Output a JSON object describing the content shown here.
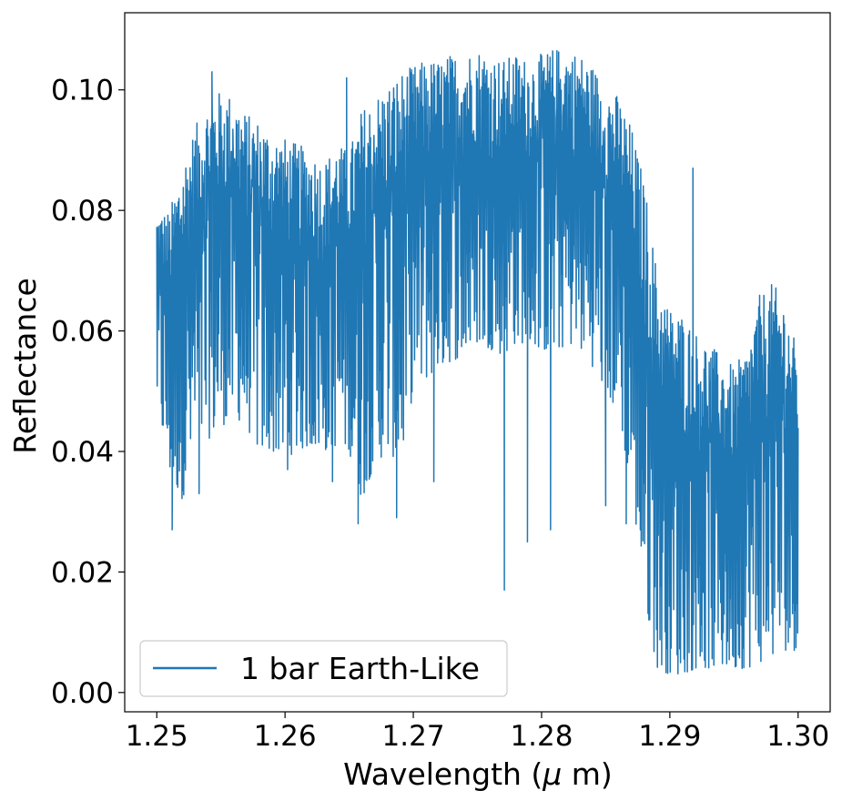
{
  "chart_data": {
    "type": "line",
    "title": "",
    "xlabel": "Wavelength ($\\mu$ m)",
    "xlabel_parts": {
      "before": "Wavelength (",
      "mu": "μ",
      "after": " m)"
    },
    "ylabel": "Reflectance",
    "xlim": [
      1.2475,
      1.3025
    ],
    "ylim": [
      -0.0032,
      0.1128
    ],
    "x_ticks": [
      1.25,
      1.26,
      1.27,
      1.28,
      1.29,
      1.3
    ],
    "x_tick_labels": [
      "1.25",
      "1.26",
      "1.27",
      "1.28",
      "1.29",
      "1.30"
    ],
    "y_ticks": [
      0.0,
      0.02,
      0.04,
      0.06,
      0.08,
      0.1
    ],
    "y_tick_labels": [
      "0.00",
      "0.02",
      "0.04",
      "0.06",
      "0.08",
      "0.10"
    ],
    "grid": false,
    "legend_position": "lower-left",
    "series": [
      {
        "name": "1 bar Earth-Like",
        "color": "#1f77b4",
        "envelope": {
          "x": [
            1.25,
            1.251,
            1.252,
            1.253,
            1.254,
            1.255,
            1.256,
            1.257,
            1.258,
            1.259,
            1.26,
            1.261,
            1.262,
            1.263,
            1.264,
            1.265,
            1.266,
            1.267,
            1.268,
            1.269,
            1.27,
            1.271,
            1.272,
            1.273,
            1.274,
            1.275,
            1.276,
            1.277,
            1.278,
            1.279,
            1.28,
            1.281,
            1.282,
            1.283,
            1.284,
            1.285,
            1.286,
            1.287,
            1.288,
            1.289,
            1.29,
            1.291,
            1.292,
            1.293,
            1.294,
            1.295,
            1.296,
            1.297,
            1.298,
            1.299,
            1.3
          ],
          "upper": [
            0.08,
            0.08,
            0.088,
            0.094,
            0.098,
            0.1,
            0.099,
            0.096,
            0.095,
            0.093,
            0.092,
            0.091,
            0.09,
            0.088,
            0.091,
            0.09,
            0.097,
            0.099,
            0.101,
            0.103,
            0.104,
            0.105,
            0.105,
            0.106,
            0.106,
            0.107,
            0.106,
            0.105,
            0.106,
            0.105,
            0.106,
            0.107,
            0.107,
            0.106,
            0.104,
            0.101,
            0.099,
            0.094,
            0.085,
            0.07,
            0.064,
            0.063,
            0.06,
            0.058,
            0.056,
            0.054,
            0.057,
            0.066,
            0.068,
            0.065,
            0.056
          ],
          "lower": [
            0.048,
            0.036,
            0.032,
            0.04,
            0.042,
            0.044,
            0.046,
            0.044,
            0.04,
            0.04,
            0.039,
            0.04,
            0.041,
            0.04,
            0.041,
            0.04,
            0.032,
            0.038,
            0.04,
            0.038,
            0.05,
            0.052,
            0.054,
            0.055,
            0.056,
            0.058,
            0.057,
            0.056,
            0.058,
            0.058,
            0.057,
            0.056,
            0.058,
            0.057,
            0.054,
            0.05,
            0.046,
            0.034,
            0.016,
            0.004,
            0.003,
            0.003,
            0.004,
            0.004,
            0.004,
            0.004,
            0.004,
            0.005,
            0.006,
            0.007,
            0.007
          ]
        },
        "dips": [
          {
            "x": 1.2512,
            "y": 0.027
          },
          {
            "x": 1.2533,
            "y": 0.033
          },
          {
            "x": 1.2602,
            "y": 0.037
          },
          {
            "x": 1.2637,
            "y": 0.035
          },
          {
            "x": 1.2657,
            "y": 0.028
          },
          {
            "x": 1.2687,
            "y": 0.029
          },
          {
            "x": 1.2716,
            "y": 0.035
          },
          {
            "x": 1.2771,
            "y": 0.017
          },
          {
            "x": 1.2789,
            "y": 0.025
          },
          {
            "x": 1.2807,
            "y": 0.027
          },
          {
            "x": 1.285,
            "y": 0.031
          },
          {
            "x": 1.2866,
            "y": 0.028
          }
        ],
        "peaks": [
          {
            "x": 1.2543,
            "y": 0.103
          },
          {
            "x": 1.2648,
            "y": 0.102
          },
          {
            "x": 1.2755,
            "y": 0.1
          },
          {
            "x": 1.2918,
            "y": 0.087
          }
        ]
      }
    ]
  }
}
